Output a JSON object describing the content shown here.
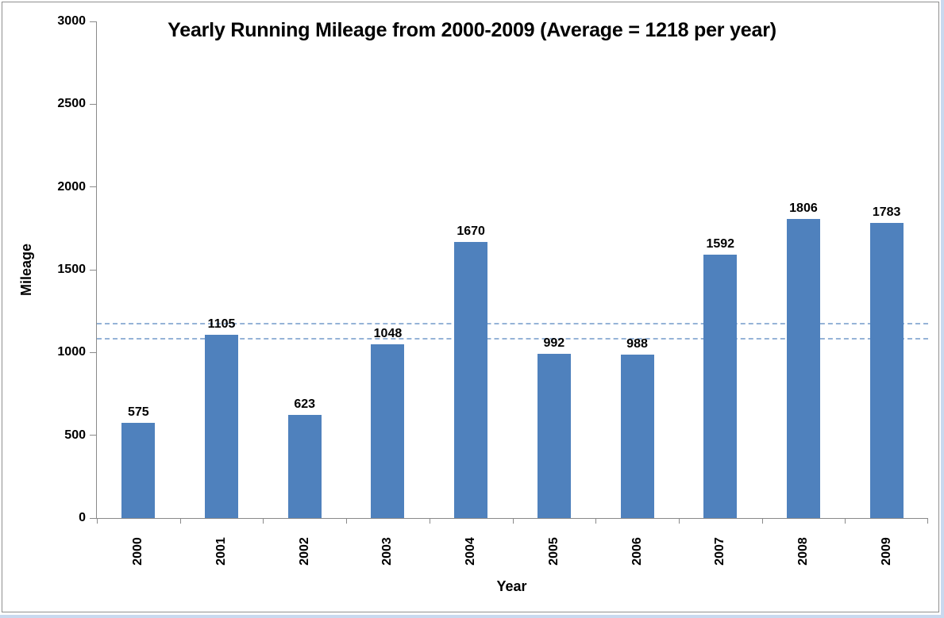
{
  "frame": {
    "border_color": "#8f8f8f",
    "outer_strip_color": "#c9d9ef"
  },
  "chart_data": {
    "type": "bar",
    "title": "Yearly Running Mileage from 2000-2009 (Average = 1218 per year)",
    "xlabel": "Year",
    "ylabel": "Mileage",
    "categories": [
      "2000",
      "2001",
      "2002",
      "2003",
      "2004",
      "2005",
      "2006",
      "2007",
      "2008",
      "2009"
    ],
    "values": [
      575,
      1105,
      623,
      1048,
      1670,
      992,
      988,
      1592,
      1806,
      1783
    ],
    "average_per_year": 1218,
    "data_labels": true,
    "ylim": [
      0,
      3000
    ],
    "yticks": [
      0,
      500,
      1000,
      1500,
      2000,
      2500,
      3000
    ],
    "bar_color": "#4F81BD",
    "axis_color": "#8a8a8a",
    "label_color": "#000000",
    "reference_lines": [
      {
        "value": 1180,
        "style": "dashed",
        "color": "#95B3D7"
      },
      {
        "value": 1090,
        "style": "dashed",
        "color": "#95B3D7"
      }
    ],
    "grid": false,
    "legend": "none",
    "x_tick_label_rotation": -90
  }
}
